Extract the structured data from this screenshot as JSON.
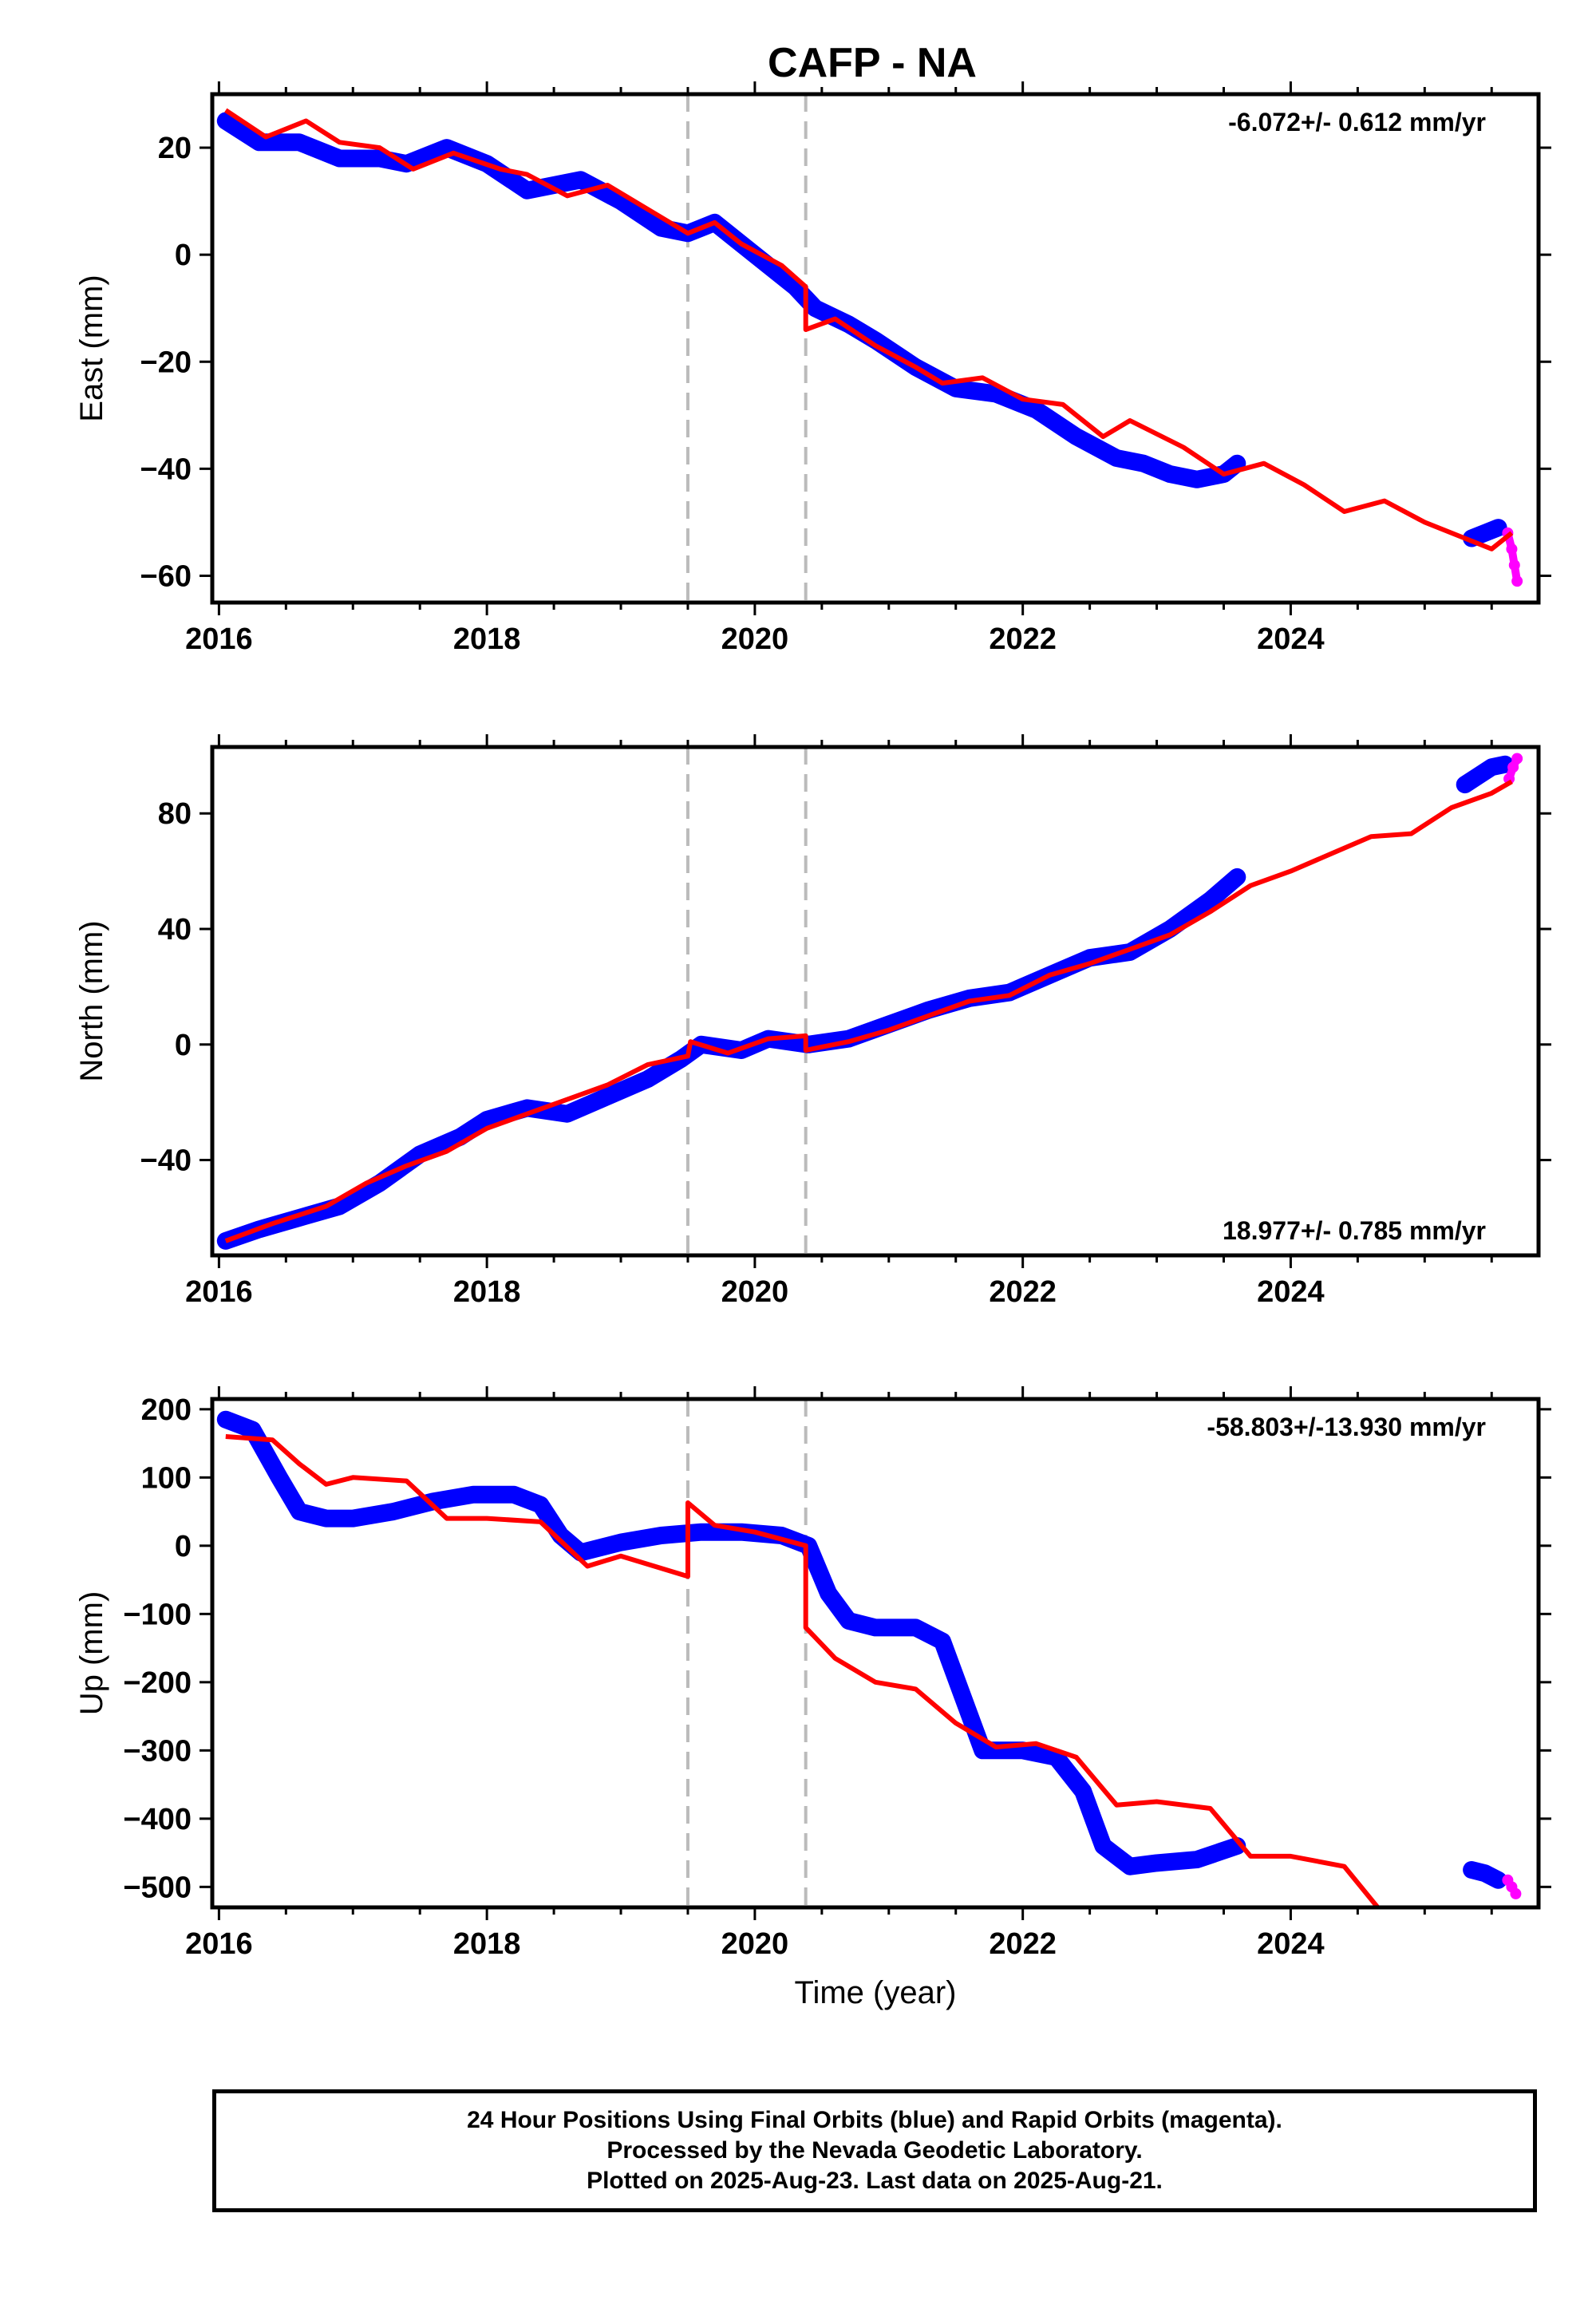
{
  "title": "CAFP - NA",
  "colors": {
    "final": "#0000ff",
    "rapid": "#ff00ff",
    "model": "#ff0000",
    "events": "#bbbbbb"
  },
  "chart_data": [
    {
      "type": "scatter",
      "component": "East",
      "ylabel": "East (mm)",
      "xlabel": "",
      "rate": "-6.072+/- 0.612 mm/yr",
      "xlim": [
        2015.95,
        2025.85
      ],
      "ylim": [
        -65,
        30
      ],
      "xticks": [
        2016,
        2018,
        2020,
        2022,
        2024
      ],
      "yticks": [
        20,
        0,
        -20,
        -40,
        -60
      ],
      "ytick_labels": [
        "20",
        "0",
        "−20",
        "−40",
        "−60"
      ],
      "series": [
        {
          "kind": "final",
          "x": [
            2016.05,
            2016.3,
            2016.6,
            2016.9,
            2017.2,
            2017.4,
            2017.7,
            2018.0,
            2018.3,
            2018.7,
            2019.0,
            2019.3,
            2019.5,
            2019.7,
            2020.0,
            2020.3,
            2020.45,
            2020.7,
            2020.9,
            2021.2,
            2021.5,
            2021.8,
            2022.1,
            2022.4,
            2022.7,
            2022.9,
            2023.1,
            2023.3,
            2023.5,
            2023.6
          ],
          "y": [
            25,
            21,
            21,
            18,
            18,
            17,
            20,
            17,
            12,
            14,
            10,
            5,
            4,
            6,
            0,
            -6,
            -10,
            -13,
            -16,
            -21,
            -25,
            -26,
            -29,
            -34,
            -38,
            -39,
            -41,
            -42,
            -41,
            -39
          ]
        },
        {
          "kind": "final",
          "x": [
            2025.35,
            2025.45,
            2025.55
          ],
          "y": [
            -53,
            -52,
            -51
          ]
        },
        {
          "kind": "rapid",
          "x": [
            2025.62,
            2025.65,
            2025.67,
            2025.69
          ],
          "y": [
            -52,
            -55,
            -58,
            -61
          ]
        },
        {
          "kind": "model",
          "x": [
            2016.05,
            2016.35,
            2016.65,
            2016.9,
            2017.2,
            2017.45,
            2017.75,
            2018.1,
            2018.3,
            2018.6,
            2018.9,
            2019.3,
            2019.5,
            2019.7,
            2019.9,
            2020.2,
            2020.38,
            2020.38,
            2020.6,
            2020.9,
            2021.2,
            2021.4,
            2021.7,
            2022.0,
            2022.3,
            2022.6,
            2022.8,
            2023.2,
            2023.5,
            2023.8,
            2024.1,
            2024.4,
            2024.7,
            2025.0,
            2025.3,
            2025.5,
            2025.65
          ],
          "y": [
            27,
            22,
            25,
            21,
            20,
            16,
            19,
            16,
            15,
            11,
            13,
            7,
            4,
            6,
            2,
            -2,
            -6,
            -14,
            -12,
            -17,
            -21,
            -24,
            -23,
            -27,
            -28,
            -34,
            -31,
            -36,
            -41,
            -39,
            -43,
            -48,
            -46,
            -50,
            -53,
            -55,
            -52
          ]
        }
      ]
    },
    {
      "type": "scatter",
      "component": "North",
      "ylabel": "North (mm)",
      "xlabel": "",
      "rate": "18.977+/- 0.785 mm/yr",
      "xlim": [
        2015.95,
        2025.85
      ],
      "ylim": [
        -73,
        103
      ],
      "xticks": [
        2016,
        2018,
        2020,
        2022,
        2024
      ],
      "yticks": [
        80,
        40,
        0,
        -40
      ],
      "ytick_labels": [
        "80",
        "40",
        "0",
        "−40"
      ],
      "series": [
        {
          "kind": "final",
          "x": [
            2016.05,
            2016.3,
            2016.6,
            2016.9,
            2017.2,
            2017.5,
            2017.8,
            2018.0,
            2018.3,
            2018.6,
            2018.9,
            2019.2,
            2019.45,
            2019.6,
            2019.9,
            2020.1,
            2020.4,
            2020.7,
            2021.0,
            2021.3,
            2021.6,
            2021.9,
            2022.2,
            2022.5,
            2022.8,
            2023.1,
            2023.4,
            2023.6
          ],
          "y": [
            -68,
            -64,
            -60,
            -56,
            -48,
            -38,
            -32,
            -26,
            -22,
            -24,
            -18,
            -12,
            -5,
            0,
            -2,
            2,
            0,
            2,
            7,
            12,
            16,
            18,
            24,
            30,
            32,
            40,
            50,
            58
          ]
        },
        {
          "kind": "final",
          "x": [
            2025.3,
            2025.4,
            2025.5,
            2025.6
          ],
          "y": [
            90,
            93,
            96,
            97
          ]
        },
        {
          "kind": "rapid",
          "x": [
            2025.63,
            2025.66,
            2025.69
          ],
          "y": [
            92,
            96,
            99
          ]
        },
        {
          "kind": "model",
          "x": [
            2016.05,
            2016.4,
            2016.8,
            2017.1,
            2017.4,
            2017.7,
            2018.0,
            2018.3,
            2018.6,
            2018.9,
            2019.2,
            2019.5,
            2019.52,
            2019.8,
            2020.1,
            2020.38,
            2020.38,
            2020.7,
            2021.0,
            2021.3,
            2021.6,
            2021.9,
            2022.2,
            2022.5,
            2022.8,
            2023.1,
            2023.4,
            2023.7,
            2024.0,
            2024.3,
            2024.6,
            2024.9,
            2025.2,
            2025.5,
            2025.65
          ],
          "y": [
            -68,
            -62,
            -56,
            -48,
            -42,
            -37,
            -29,
            -24,
            -19,
            -14,
            -7,
            -4,
            1,
            -3,
            2,
            3,
            -2,
            1,
            5,
            10,
            15,
            17,
            24,
            28,
            33,
            38,
            46,
            55,
            60,
            66,
            72,
            73,
            82,
            87,
            91
          ]
        }
      ]
    },
    {
      "type": "scatter",
      "component": "Up",
      "ylabel": "Up (mm)",
      "xlabel": "Time (year)",
      "rate": "-58.803+/-13.930 mm/yr",
      "xlim": [
        2015.95,
        2025.85
      ],
      "ylim": [
        -530,
        215
      ],
      "xticks": [
        2016,
        2018,
        2020,
        2022,
        2024
      ],
      "yticks": [
        200,
        100,
        0,
        -100,
        -200,
        -300,
        -400,
        -500
      ],
      "ytick_labels": [
        "200",
        "100",
        "0",
        "−100",
        "−200",
        "−300",
        "−400",
        "−500"
      ],
      "series": [
        {
          "kind": "final",
          "x": [
            2016.05,
            2016.25,
            2016.45,
            2016.6,
            2016.8,
            2017.0,
            2017.3,
            2017.6,
            2017.9,
            2018.2,
            2018.4,
            2018.55,
            2018.7,
            2019.0,
            2019.3,
            2019.6,
            2019.9,
            2020.2,
            2020.4,
            2020.55,
            2020.7,
            2020.9,
            2021.2,
            2021.4,
            2021.55,
            2021.7,
            2022.0,
            2022.25,
            2022.45,
            2022.6,
            2022.8,
            2023.0,
            2023.3,
            2023.6
          ],
          "y": [
            185,
            170,
            100,
            50,
            40,
            40,
            50,
            65,
            75,
            75,
            60,
            15,
            -10,
            5,
            15,
            20,
            20,
            15,
            0,
            -70,
            -110,
            -120,
            -120,
            -140,
            -220,
            -300,
            -300,
            -310,
            -360,
            -440,
            -470,
            -465,
            -460,
            -440
          ]
        },
        {
          "kind": "final",
          "x": [
            2025.35,
            2025.45,
            2025.55
          ],
          "y": [
            -475,
            -480,
            -490
          ]
        },
        {
          "kind": "rapid",
          "x": [
            2025.62,
            2025.65,
            2025.68
          ],
          "y": [
            -490,
            -500,
            -510
          ]
        },
        {
          "kind": "model",
          "x": [
            2016.05,
            2016.4,
            2016.6,
            2016.8,
            2017.0,
            2017.4,
            2017.7,
            2018.0,
            2018.4,
            2018.75,
            2019.0,
            2019.5,
            2019.5,
            2019.7,
            2020.0,
            2020.38,
            2020.38,
            2020.6,
            2020.9,
            2021.2,
            2021.5,
            2021.8,
            2022.1,
            2022.4,
            2022.7,
            2023.0,
            2023.4,
            2023.7,
            2024.0,
            2024.4,
            2024.65
          ],
          "y": [
            160,
            155,
            120,
            90,
            100,
            95,
            40,
            40,
            35,
            -30,
            -15,
            -45,
            63,
            30,
            20,
            0,
            -120,
            -165,
            -200,
            -210,
            -260,
            -295,
            -290,
            -310,
            -380,
            -375,
            -385,
            -455,
            -455,
            -470,
            -530
          ]
        }
      ]
    }
  ],
  "footer": {
    "line1": "24 Hour Positions Using Final Orbits (blue) and Rapid Orbits (magenta).",
    "line2": "Processed by the Nevada Geodetic Laboratory.",
    "line3": "Plotted on 2025-Aug-23. Last data on 2025-Aug-21."
  }
}
